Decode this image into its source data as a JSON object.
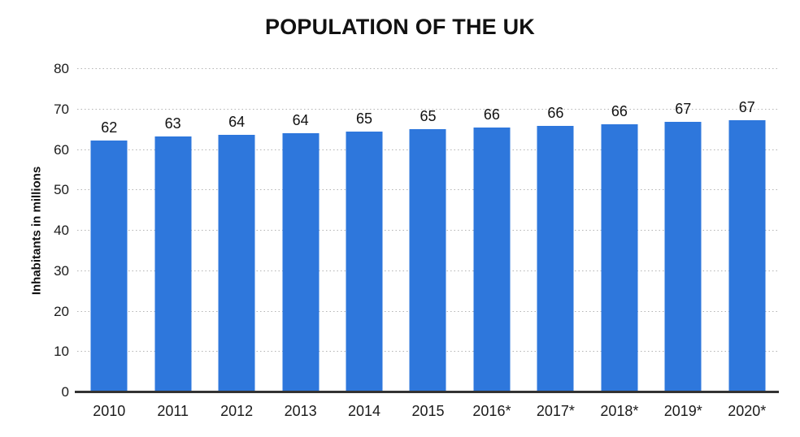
{
  "chart_data": {
    "type": "bar",
    "title": "POPULATION OF THE UK",
    "xlabel": "",
    "ylabel": "Inhabitants in millions",
    "categories": [
      "2010",
      "2011",
      "2012",
      "2013",
      "2014",
      "2015",
      "2016*",
      "2017*",
      "2018*",
      "2019*",
      "2020*"
    ],
    "values": [
      62.3,
      63.4,
      63.8,
      64.2,
      64.6,
      65.1,
      65.6,
      66.0,
      66.4,
      67.0,
      67.4
    ],
    "bar_labels": [
      "62",
      "63",
      "64",
      "64",
      "65",
      "65",
      "66",
      "66",
      "66",
      "67",
      "67"
    ],
    "yticks": [
      0,
      10,
      20,
      30,
      40,
      50,
      60,
      70,
      80
    ],
    "ylim": [
      0,
      80
    ],
    "grid": "horizontal-dotted",
    "legend": "none",
    "colors": {
      "bar": "#2E77DC",
      "axis_line": "#333333",
      "gridline": "#b3b3b3",
      "text": "#1a1a1a",
      "background": "#ffffff"
    }
  }
}
